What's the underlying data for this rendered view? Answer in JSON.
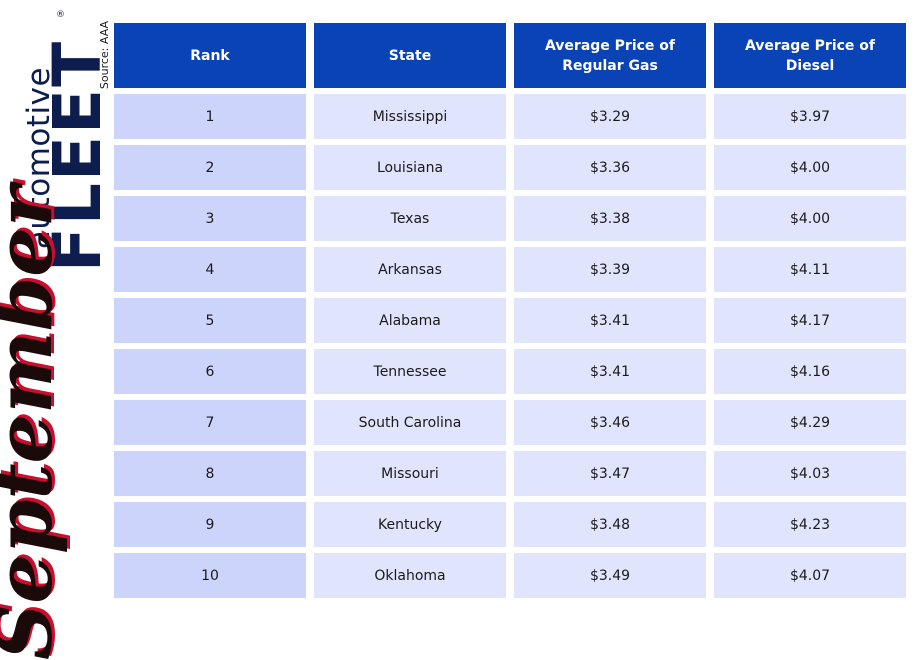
{
  "sidebar": {
    "source": "Source: AAA",
    "brand_top": "automotive",
    "brand_bottom": "FLEET",
    "registered": "®",
    "month": "September"
  },
  "chart_data": {
    "type": "table",
    "columns": [
      "Rank",
      "State",
      "Average Price of Regular Gas",
      "Average Price of Diesel"
    ],
    "rows": [
      [
        "1",
        "Mississippi",
        "$3.29",
        "$3.97"
      ],
      [
        "2",
        "Louisiana",
        "$3.36",
        "$4.00"
      ],
      [
        "3",
        "Texas",
        "$3.38",
        "$4.00"
      ],
      [
        "4",
        "Arkansas",
        "$3.39",
        "$4.11"
      ],
      [
        "5",
        "Alabama",
        "$3.41",
        "$4.17"
      ],
      [
        "6",
        "Tennessee",
        "$3.41",
        "$4.16"
      ],
      [
        "7",
        "South Carolina",
        "$3.46",
        "$4.29"
      ],
      [
        "8",
        "Missouri",
        "$3.47",
        "$4.03"
      ],
      [
        "9",
        "Kentucky",
        "$3.48",
        "$4.23"
      ],
      [
        "10",
        "Oklahoma",
        "$3.49",
        "$4.07"
      ]
    ],
    "colors": {
      "header_bg": "#0a43b5",
      "rank_bg": "#ccd4fb",
      "cell_bg": "#e0e4fd",
      "brand": "#0c1d4e",
      "month_accent": "#c8102e"
    }
  }
}
